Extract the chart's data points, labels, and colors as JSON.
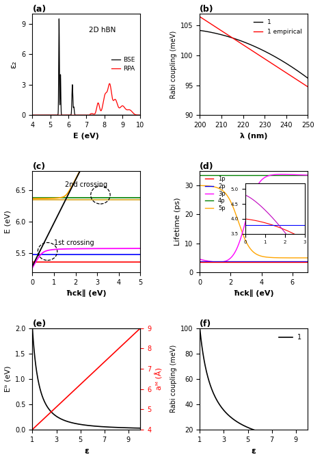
{
  "panel_a": {
    "title": "(a)",
    "xlabel": "E (eV)",
    "ylabel": "ε₂",
    "annotation": "2D hBN",
    "xlim": [
      4,
      10
    ],
    "ylim": [
      0,
      10
    ],
    "yticks": [
      0,
      3,
      6,
      9
    ],
    "xticks": [
      4,
      5,
      6,
      7,
      8,
      9,
      10
    ]
  },
  "panel_b": {
    "title": "(b)",
    "xlabel": "λ (nm)",
    "ylabel": "Rabi coupling (meV)",
    "xlim": [
      200,
      250
    ],
    "ylim": [
      90,
      107
    ],
    "yticks": [
      90,
      95,
      100,
      105
    ],
    "xticks": [
      200,
      210,
      220,
      230,
      240,
      250
    ]
  },
  "panel_c": {
    "title": "(c)",
    "xlabel": "ħck∥ (eV)",
    "ylabel": "E (eV)",
    "xlim": [
      0,
      5
    ],
    "ylim": [
      5.2,
      6.8
    ],
    "yticks": [
      5.5,
      6.0,
      6.5
    ],
    "xticks": [
      0,
      1,
      2,
      3,
      4,
      5
    ],
    "label_1st": "1st crossing",
    "label_2nd": "2nd crossing"
  },
  "panel_d": {
    "title": "(d)",
    "xlabel": "ħck∥ (eV)",
    "ylabel": "Lifetime (ps)",
    "xlim": [
      0,
      7
    ],
    "ylim": [
      0,
      35
    ],
    "yticks": [
      0,
      10,
      20,
      30
    ],
    "xticks": [
      0,
      2,
      4,
      6
    ],
    "labels": [
      "1p",
      "2p",
      "3p",
      "4p",
      "5p"
    ],
    "colors": [
      "red",
      "blue",
      "magenta",
      "green",
      "orange"
    ]
  },
  "panel_e": {
    "title": "(e)",
    "xlabel": "ε",
    "ylabel_left": "Eᵇ (eV)",
    "ylabel_right": "aᴹ (Å)",
    "xlim": [
      1,
      10
    ],
    "ylim_left": [
      0,
      2.0
    ],
    "ylim_right": [
      4,
      9
    ],
    "xticks": [
      1,
      3,
      5,
      7,
      9
    ],
    "yticks_left": [
      0.0,
      0.5,
      1.0,
      1.5,
      2.0
    ],
    "yticks_right": [
      4,
      5,
      6,
      7,
      8,
      9
    ]
  },
  "panel_f": {
    "title": "(f)",
    "xlabel": "ε",
    "ylabel": "Rabi coupling (meV)",
    "xlim": [
      1,
      10
    ],
    "ylim": [
      20,
      100
    ],
    "xticks": [
      1,
      3,
      5,
      7,
      9
    ],
    "yticks": [
      20,
      40,
      60,
      80,
      100
    ],
    "label": "1"
  }
}
